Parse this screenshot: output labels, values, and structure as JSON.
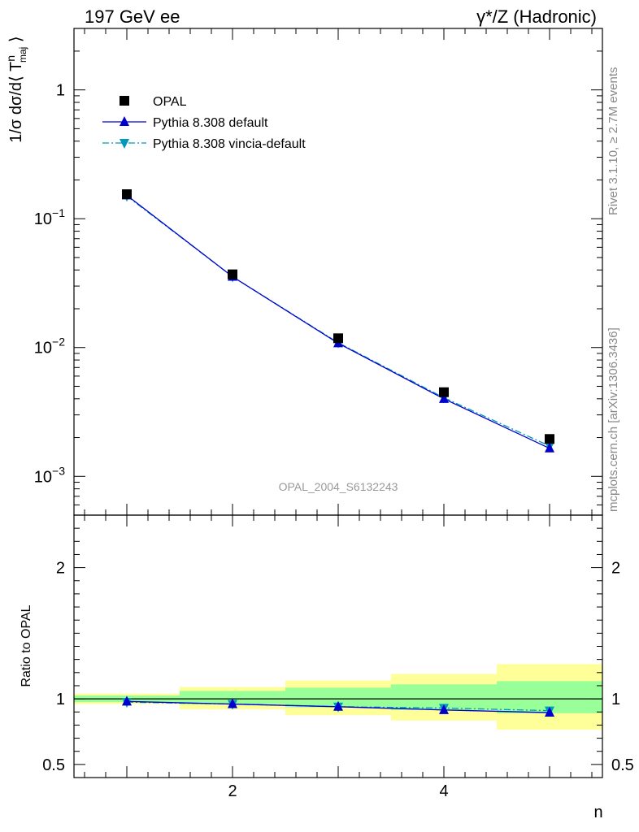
{
  "header": {
    "left": "197 GeV ee",
    "right": "γ*/Z (Hadronic)"
  },
  "side_labels": {
    "rivet": "Rivet 3.1.10, ≥ 2.7M events",
    "mcplots": "mcplots.cern.ch [arXiv:1306.3436]"
  },
  "watermark": "OPAL_2004_S6132243",
  "chart_data": [
    {
      "type": "scatter",
      "panel": "main",
      "ylabel": "1/σ dσ/d⟨ T^n_maj ⟩",
      "yscale": "log",
      "xlim": [
        0.5,
        5.5
      ],
      "ylim": [
        0.0005,
        3.0
      ],
      "y_ticks": [
        {
          "value": 1,
          "label": "1"
        },
        {
          "value": 0.1,
          "label": "10^-1",
          "base": "10",
          "exp": "−1"
        },
        {
          "value": 0.01,
          "label": "10^-2",
          "base": "10",
          "exp": "−2"
        },
        {
          "value": 0.001,
          "label": "10^-3",
          "base": "10",
          "exp": "−3"
        }
      ],
      "legend_position": "top-left",
      "x": [
        1,
        2,
        3,
        4,
        5
      ],
      "series": [
        {
          "name": "OPAL",
          "color": "#000000",
          "marker": "square",
          "values": [
            0.155,
            0.037,
            0.0118,
            0.0045,
            0.00195
          ]
        },
        {
          "name": "Pythia 8.308 default",
          "color": "#0000cc",
          "marker": "triangle-up",
          "line": "solid",
          "values": [
            0.152,
            0.0355,
            0.0108,
            0.004,
            0.00165
          ]
        },
        {
          "name": "Pythia 8.308 vincia-default",
          "color": "#0099bb",
          "marker": "triangle-down",
          "line": "dashdot",
          "values": [
            0.15,
            0.0355,
            0.0109,
            0.00408,
            0.00172
          ]
        }
      ]
    },
    {
      "type": "scatter",
      "panel": "ratio",
      "xlabel": "n",
      "ylabel": "Ratio to OPAL",
      "xlim": [
        0.5,
        5.5
      ],
      "ylim": [
        0.4,
        2.4
      ],
      "x_ticks": [
        {
          "value": 2,
          "label": "2"
        },
        {
          "value": 4,
          "label": "4"
        }
      ],
      "y_ticks": [
        {
          "value": 0.5,
          "label": "0.5"
        },
        {
          "value": 1,
          "label": "1"
        },
        {
          "value": 2,
          "label": "2"
        }
      ],
      "bins": [
        [
          0.5,
          1.5
        ],
        [
          1.5,
          2.5
        ],
        [
          2.5,
          3.5
        ],
        [
          3.5,
          4.5
        ],
        [
          4.5,
          5.5
        ]
      ],
      "band_green": [
        [
          0.975,
          1.025
        ],
        [
          0.96,
          1.06
        ],
        [
          0.935,
          1.085
        ],
        [
          0.915,
          1.11
        ],
        [
          0.89,
          1.135
        ]
      ],
      "band_yellow": [
        [
          0.96,
          1.04
        ],
        [
          0.92,
          1.09
        ],
        [
          0.875,
          1.14
        ],
        [
          0.835,
          1.19
        ],
        [
          0.765,
          1.265
        ]
      ],
      "x": [
        1,
        2,
        3,
        4,
        5
      ],
      "series": [
        {
          "name": "Pythia 8.308 default",
          "color": "#0000cc",
          "marker": "triangle-up",
          "line": "solid",
          "values": [
            0.98,
            0.96,
            0.94,
            0.915,
            0.895
          ]
        },
        {
          "name": "Pythia 8.308 vincia-default",
          "color": "#0099bb",
          "marker": "triangle-down",
          "line": "dashdot",
          "values": [
            0.975,
            0.96,
            0.94,
            0.93,
            0.91
          ]
        }
      ]
    }
  ]
}
